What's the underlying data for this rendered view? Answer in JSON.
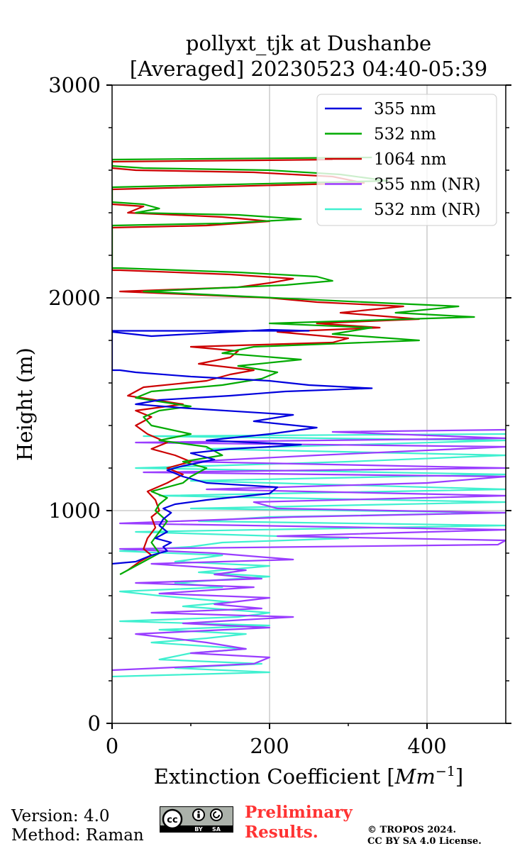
{
  "chart_data": {
    "type": "line",
    "title": [
      "pollyxt_tjk at Dushanbe",
      "[Averaged] 20230523 04:40-05:39"
    ],
    "xlabel": "Extinction Coefficient [Mm⁻¹]",
    "ylabel": "Height (m)",
    "xlim": [
      0,
      500
    ],
    "ylim": [
      0,
      3000
    ],
    "x_ticks": [
      "0",
      "200",
      "400"
    ],
    "y_ticks": [
      "0",
      "1000",
      "2000",
      "3000"
    ],
    "grid": true,
    "legend_position": "top-right",
    "series": [
      {
        "name": "355 nm",
        "color": "#0000dd",
        "points": [
          [
            0,
            750
          ],
          [
            30,
            760
          ],
          [
            50,
            790
          ],
          [
            70,
            810
          ],
          [
            65,
            830
          ],
          [
            75,
            850
          ],
          [
            55,
            870
          ],
          [
            70,
            900
          ],
          [
            60,
            930
          ],
          [
            65,
            960
          ],
          [
            75,
            990
          ],
          [
            65,
            1010
          ],
          [
            80,
            1030
          ],
          [
            120,
            1050
          ],
          [
            200,
            1080
          ],
          [
            210,
            1110
          ],
          [
            120,
            1130
          ],
          [
            90,
            1160
          ],
          [
            70,
            1190
          ],
          [
            90,
            1210
          ],
          [
            130,
            1240
          ],
          [
            100,
            1270
          ],
          [
            150,
            1290
          ],
          [
            200,
            1300
          ],
          [
            240,
            1310
          ],
          [
            120,
            1330
          ],
          [
            200,
            1360
          ],
          [
            260,
            1390
          ],
          [
            180,
            1420
          ],
          [
            230,
            1450
          ],
          [
            100,
            1480
          ],
          [
            30,
            1500
          ],
          [
            60,
            1520
          ],
          [
            150,
            1540
          ],
          [
            220,
            1560
          ],
          [
            330,
            1575
          ],
          [
            250,
            1590
          ],
          [
            200,
            1610
          ],
          [
            100,
            1630
          ],
          [
            30,
            1650
          ],
          [
            10,
            1660
          ],
          [
            0,
            1660
          ],
          [
            0,
            1840
          ],
          [
            50,
            1820
          ],
          [
            200,
            1850
          ],
          [
            250,
            1845
          ],
          [
            0,
            1845
          ]
        ]
      },
      {
        "name": "532 nm",
        "color": "#00aa00",
        "points": [
          [
            10,
            700
          ],
          [
            40,
            760
          ],
          [
            60,
            800
          ],
          [
            50,
            850
          ],
          [
            60,
            900
          ],
          [
            70,
            950
          ],
          [
            55,
            1000
          ],
          [
            60,
            1030
          ],
          [
            70,
            1060
          ],
          [
            50,
            1090
          ],
          [
            90,
            1130
          ],
          [
            100,
            1160
          ],
          [
            120,
            1200
          ],
          [
            90,
            1230
          ],
          [
            140,
            1260
          ],
          [
            120,
            1300
          ],
          [
            60,
            1330
          ],
          [
            100,
            1360
          ],
          [
            50,
            1400
          ],
          [
            40,
            1440
          ],
          [
            60,
            1470
          ],
          [
            100,
            1490
          ],
          [
            30,
            1530
          ],
          [
            50,
            1560
          ],
          [
            140,
            1590
          ],
          [
            190,
            1620
          ],
          [
            210,
            1650
          ],
          [
            160,
            1680
          ],
          [
            240,
            1710
          ],
          [
            140,
            1740
          ],
          [
            180,
            1770
          ],
          [
            390,
            1800
          ],
          [
            280,
            1830
          ],
          [
            330,
            1860
          ],
          [
            200,
            1880
          ],
          [
            460,
            1910
          ],
          [
            360,
            1930
          ],
          [
            440,
            1960
          ],
          [
            320,
            1980
          ],
          [
            150,
            2010
          ],
          [
            40,
            2030
          ],
          [
            220,
            2060
          ],
          [
            280,
            2080
          ],
          [
            260,
            2100
          ],
          [
            160,
            2120
          ],
          [
            10,
            2140
          ],
          [
            0,
            2140
          ],
          [
            0,
            2340
          ],
          [
            140,
            2350
          ],
          [
            190,
            2360
          ],
          [
            240,
            2370
          ],
          [
            160,
            2390
          ],
          [
            30,
            2400
          ],
          [
            60,
            2420
          ],
          [
            40,
            2440
          ],
          [
            0,
            2450
          ],
          [
            0,
            2520
          ],
          [
            350,
            2550
          ],
          [
            290,
            2580
          ],
          [
            200,
            2600
          ],
          [
            40,
            2610
          ],
          [
            0,
            2620
          ],
          [
            0,
            2650
          ],
          [
            330,
            2660
          ]
        ]
      },
      {
        "name": "1064 nm",
        "color": "#cc0000",
        "points": [
          [
            20,
            720
          ],
          [
            35,
            760
          ],
          [
            50,
            790
          ],
          [
            40,
            820
          ],
          [
            45,
            870
          ],
          [
            55,
            920
          ],
          [
            50,
            970
          ],
          [
            60,
            1000
          ],
          [
            55,
            1050
          ],
          [
            45,
            1090
          ],
          [
            70,
            1130
          ],
          [
            90,
            1170
          ],
          [
            70,
            1200
          ],
          [
            100,
            1230
          ],
          [
            80,
            1260
          ],
          [
            50,
            1290
          ],
          [
            70,
            1320
          ],
          [
            45,
            1360
          ],
          [
            30,
            1400
          ],
          [
            50,
            1440
          ],
          [
            30,
            1470
          ],
          [
            90,
            1500
          ],
          [
            20,
            1540
          ],
          [
            40,
            1580
          ],
          [
            120,
            1610
          ],
          [
            150,
            1640
          ],
          [
            180,
            1660
          ],
          [
            110,
            1690
          ],
          [
            150,
            1720
          ],
          [
            160,
            1750
          ],
          [
            100,
            1770
          ],
          [
            280,
            1790
          ],
          [
            300,
            1810
          ],
          [
            210,
            1840
          ],
          [
            340,
            1860
          ],
          [
            260,
            1880
          ],
          [
            390,
            1900
          ],
          [
            290,
            1930
          ],
          [
            370,
            1960
          ],
          [
            260,
            1980
          ],
          [
            200,
            2000
          ],
          [
            10,
            2030
          ],
          [
            160,
            2050
          ],
          [
            200,
            2070
          ],
          [
            230,
            2090
          ],
          [
            150,
            2110
          ],
          [
            10,
            2130
          ],
          [
            0,
            2130
          ],
          [
            0,
            2330
          ],
          [
            120,
            2340
          ],
          [
            200,
            2360
          ],
          [
            140,
            2380
          ],
          [
            20,
            2400
          ],
          [
            40,
            2430
          ],
          [
            0,
            2440
          ],
          [
            0,
            2510
          ],
          [
            320,
            2540
          ],
          [
            280,
            2570
          ],
          [
            180,
            2590
          ],
          [
            30,
            2600
          ],
          [
            0,
            2610
          ],
          [
            0,
            2640
          ],
          [
            280,
            2650
          ]
        ]
      },
      {
        "name": "355 nm (NR)",
        "color": "#9a3dff",
        "points": [
          [
            0,
            250
          ],
          [
            180,
            280
          ],
          [
            200,
            310
          ],
          [
            100,
            330
          ],
          [
            170,
            350
          ],
          [
            120,
            380
          ],
          [
            30,
            420
          ],
          [
            200,
            450
          ],
          [
            90,
            470
          ],
          [
            230,
            500
          ],
          [
            50,
            520
          ],
          [
            190,
            540
          ],
          [
            130,
            560
          ],
          [
            200,
            590
          ],
          [
            60,
            610
          ],
          [
            180,
            640
          ],
          [
            30,
            660
          ],
          [
            190,
            680
          ],
          [
            130,
            700
          ],
          [
            170,
            720
          ],
          [
            50,
            750
          ],
          [
            230,
            770
          ],
          [
            130,
            800
          ],
          [
            10,
            820
          ],
          [
            490,
            840
          ],
          [
            500,
            860
          ],
          [
            210,
            880
          ],
          [
            500,
            910
          ],
          [
            10,
            940
          ],
          [
            230,
            970
          ],
          [
            500,
            990
          ],
          [
            210,
            1010
          ],
          [
            180,
            1040
          ],
          [
            500,
            1070
          ],
          [
            120,
            1100
          ],
          [
            400,
            1130
          ],
          [
            500,
            1160
          ],
          [
            40,
            1180
          ],
          [
            500,
            1200
          ],
          [
            100,
            1230
          ],
          [
            260,
            1260
          ],
          [
            500,
            1300
          ],
          [
            30,
            1320
          ],
          [
            500,
            1340
          ],
          [
            280,
            1370
          ],
          [
            500,
            1380
          ]
        ]
      },
      {
        "name": "532 nm (NR)",
        "color": "#40f0d0",
        "points": [
          [
            0,
            220
          ],
          [
            200,
            240
          ],
          [
            80,
            260
          ],
          [
            190,
            280
          ],
          [
            60,
            300
          ],
          [
            100,
            330
          ],
          [
            170,
            350
          ],
          [
            50,
            380
          ],
          [
            120,
            400
          ],
          [
            170,
            420
          ],
          [
            60,
            440
          ],
          [
            200,
            460
          ],
          [
            10,
            480
          ],
          [
            160,
            500
          ],
          [
            200,
            520
          ],
          [
            90,
            550
          ],
          [
            150,
            570
          ],
          [
            60,
            600
          ],
          [
            10,
            620
          ],
          [
            140,
            640
          ],
          [
            80,
            660
          ],
          [
            200,
            690
          ],
          [
            110,
            710
          ],
          [
            200,
            740
          ],
          [
            80,
            760
          ],
          [
            140,
            790
          ],
          [
            10,
            810
          ],
          [
            100,
            830
          ],
          [
            140,
            850
          ],
          [
            300,
            870
          ],
          [
            30,
            900
          ],
          [
            500,
            930
          ],
          [
            110,
            950
          ],
          [
            200,
            970
          ],
          [
            500,
            990
          ],
          [
            100,
            1010
          ],
          [
            500,
            1040
          ],
          [
            60,
            1070
          ],
          [
            500,
            1100
          ],
          [
            100,
            1140
          ],
          [
            500,
            1170
          ],
          [
            30,
            1200
          ],
          [
            300,
            1230
          ],
          [
            500,
            1260
          ],
          [
            120,
            1290
          ],
          [
            500,
            1330
          ],
          [
            40,
            1350
          ],
          [
            500,
            1360
          ]
        ]
      }
    ]
  },
  "footer": {
    "version": "Version: 4.0",
    "method": "Method: Raman",
    "license_badge": "CC BY SA",
    "cc_symbol": "cc",
    "by_text": "BY",
    "sa_text": "SA",
    "preliminary_line1": "Preliminary",
    "preliminary_line2": "Results.",
    "preliminary_color": "#ff3333",
    "copyright_line1": "© TROPOS 2024.",
    "copyright_line2": "CC BY SA 4.0 License."
  }
}
